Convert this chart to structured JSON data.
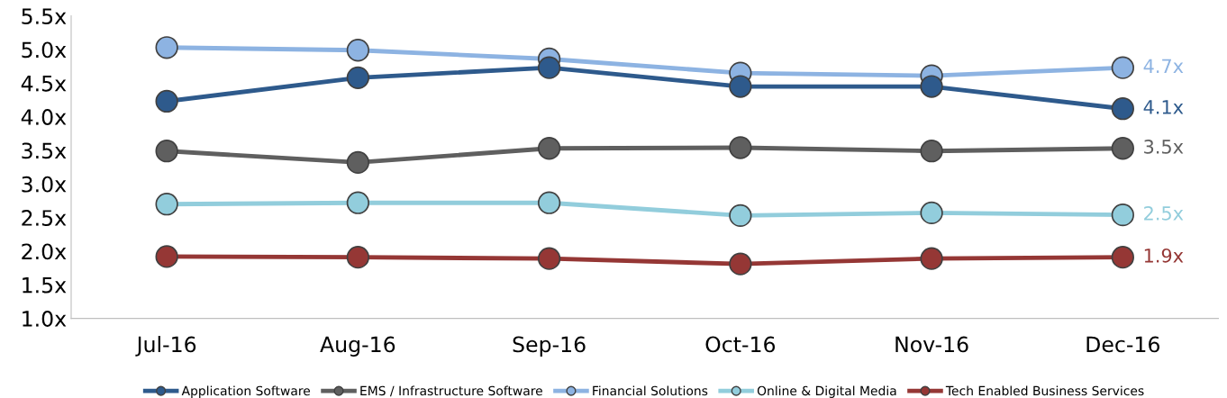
{
  "chart_data": {
    "type": "line",
    "categories": [
      "Jul-16",
      "Aug-16",
      "Sep-16",
      "Oct-16",
      "Nov-16",
      "Dec-16"
    ],
    "series": [
      {
        "name": "Application Software",
        "color": "#2e5a8c",
        "values": [
          4.23,
          4.58,
          4.73,
          4.45,
          4.45,
          4.12
        ],
        "value_labels": [
          null,
          null,
          null,
          null,
          null,
          "4.1x"
        ]
      },
      {
        "name": "EMS / Infrastructure Software",
        "color": "#5f5f5f",
        "values": [
          3.49,
          3.32,
          3.53,
          3.54,
          3.49,
          3.53
        ],
        "value_labels": [
          null,
          null,
          null,
          null,
          null,
          "3.5x"
        ]
      },
      {
        "name": "Financial Solutions",
        "color": "#8db3e2",
        "values": [
          5.03,
          4.99,
          4.86,
          4.65,
          4.61,
          4.73
        ],
        "value_labels": [
          null,
          null,
          null,
          null,
          null,
          "4.7x"
        ]
      },
      {
        "name": "Online & Digital Media",
        "color": "#92cddc",
        "values": [
          2.7,
          2.72,
          2.72,
          2.53,
          2.57,
          2.54
        ],
        "value_labels": [
          null,
          null,
          null,
          null,
          null,
          "2.5x"
        ]
      },
      {
        "name": "Tech Enabled Business Services",
        "color": "#953735",
        "values": [
          1.92,
          1.91,
          1.89,
          1.81,
          1.89,
          1.91
        ],
        "value_labels": [
          null,
          null,
          null,
          null,
          null,
          "1.9x"
        ]
      }
    ],
    "ylim": [
      1.0,
      5.5
    ],
    "yticks": [
      {
        "value": 1.0,
        "label": "1.0x"
      },
      {
        "value": 1.5,
        "label": "1.5x"
      },
      {
        "value": 2.0,
        "label": "2.0x"
      },
      {
        "value": 2.5,
        "label": "2.5x"
      },
      {
        "value": 3.0,
        "label": "3.0x"
      },
      {
        "value": 3.5,
        "label": "3.5x"
      },
      {
        "value": 4.0,
        "label": "4.0x"
      },
      {
        "value": 4.5,
        "label": "4.5x"
      },
      {
        "value": 5.0,
        "label": "5.0x"
      },
      {
        "value": 5.5,
        "label": "5.5x"
      }
    ],
    "grid": false,
    "legend": "bottom",
    "marker": "circle",
    "line_style": "solid"
  }
}
